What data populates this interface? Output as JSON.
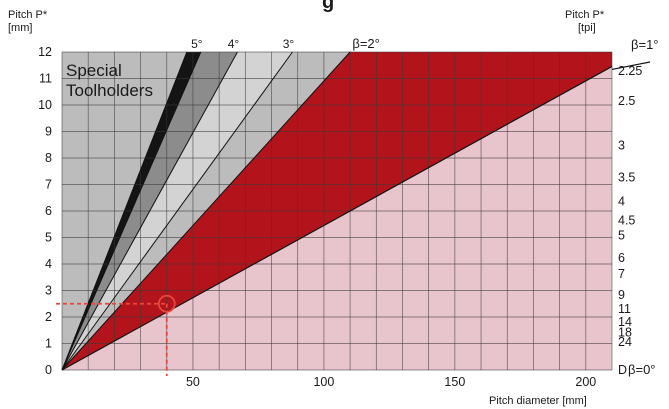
{
  "header": {
    "title_fragment": "g",
    "left_axis_title": "Pitch P*",
    "left_axis_unit": "[mm]",
    "right_axis_title": "Pitch P*",
    "right_axis_unit": "[tpi]"
  },
  "chart_data": {
    "type": "area",
    "xlabel": "Pitch diameter [mm]",
    "ylabel": "Pitch P* [mm]",
    "y2label": "Pitch P* [tpi]",
    "xlim": [
      0,
      210
    ],
    "ylim": [
      0,
      12
    ],
    "x_ticks": [
      50,
      100,
      150,
      200
    ],
    "y_ticks": [
      0,
      1,
      2,
      3,
      4,
      5,
      6,
      7,
      8,
      9,
      10,
      11,
      12
    ],
    "tpi_ticks": [
      "2.25",
      "2.5",
      "3",
      "3.5",
      "4",
      "4.5",
      "5",
      "6",
      "7",
      "9",
      "11",
      "14",
      "18",
      "24",
      "D"
    ],
    "tpi_values": [
      2.25,
      2.5,
      3,
      3.5,
      4,
      4.5,
      5,
      6,
      7,
      9,
      11,
      14,
      18,
      24
    ],
    "grid": true,
    "region_label": "Special Toolholders",
    "angle_lines": [
      {
        "label": "5°",
        "top_x": 53
      },
      {
        "label": "4°",
        "top_x": 67
      },
      {
        "label": "3°",
        "top_x": 88
      },
      {
        "label": "β=2°",
        "top_x": 110
      },
      {
        "label": "β=1°",
        "top_x": 220
      },
      {
        "label": "β=0°",
        "top_x": null
      }
    ],
    "regions": [
      {
        "name": "black-band",
        "color": "#141414"
      },
      {
        "name": "dark-gray-band",
        "color": "#8c8c8c"
      },
      {
        "name": "light-gray-band",
        "color": "#d3d3d3"
      },
      {
        "name": "red-band",
        "color": "#b3141c"
      },
      {
        "name": "pink-band",
        "color": "#e8c4cc"
      }
    ],
    "example_point": {
      "x": 40,
      "y": 2.5,
      "color": "#e8483c"
    }
  }
}
